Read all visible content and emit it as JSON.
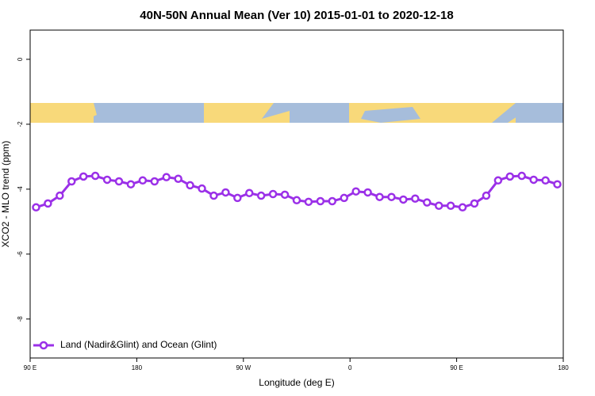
{
  "chart_data": {
    "type": "line",
    "title": "40N-50N Annual Mean (Ver 10)   2015-01-01 to 2020-12-18",
    "x_label": "Longitude (deg E)",
    "y_label": "XCO2 - MLO trend (ppm)",
    "x": [
      95,
      105,
      115,
      125,
      135,
      145,
      155,
      165,
      175,
      185,
      195,
      205,
      215,
      225,
      235,
      245,
      255,
      265,
      275,
      285,
      295,
      305,
      315,
      325,
      335,
      345,
      355,
      365,
      375,
      385,
      395,
      405,
      415,
      425,
      435,
      445,
      455,
      465,
      475,
      485,
      495,
      505,
      515,
      525,
      535
    ],
    "series": [
      {
        "name": "Land (Nadir&Glint) and Ocean (Glint)",
        "color": "#9b30e8",
        "values": [
          -4.56,
          -4.44,
          -4.2,
          -3.76,
          -3.61,
          -3.59,
          -3.71,
          -3.76,
          -3.85,
          -3.73,
          -3.76,
          -3.63,
          -3.68,
          -3.88,
          -3.98,
          -4.2,
          -4.1,
          -4.27,
          -4.12,
          -4.2,
          -4.15,
          -4.17,
          -4.34,
          -4.39,
          -4.37,
          -4.37,
          -4.27,
          -4.07,
          -4.1,
          -4.24,
          -4.24,
          -4.32,
          -4.29,
          -4.41,
          -4.51,
          -4.51,
          -4.56,
          -4.44,
          -4.2,
          -3.73,
          -3.61,
          -3.59,
          -3.71,
          -3.73,
          -3.85
        ]
      }
    ],
    "xlim": [
      90,
      540
    ],
    "xticks": [
      {
        "value": 90,
        "label": "90 E"
      },
      {
        "value": 180,
        "label": "180"
      },
      {
        "value": 270,
        "label": "90 W"
      },
      {
        "value": 360,
        "label": "0"
      },
      {
        "value": 450,
        "label": "90 E"
      },
      {
        "value": 540,
        "label": "180"
      }
    ],
    "ylim": [
      -9.2,
      0.9
    ],
    "yticks": [
      0,
      -2,
      -4,
      -6,
      -8
    ],
    "legend": "bottom-left"
  }
}
